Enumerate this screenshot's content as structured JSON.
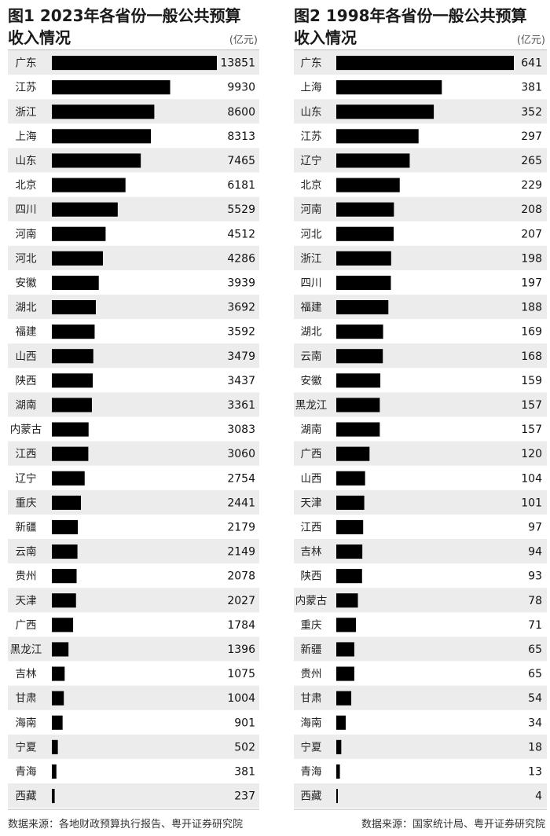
{
  "chart_data": [
    {
      "type": "bar",
      "orientation": "horizontal",
      "title": "图1 2023年各省份一般公共预算收入情况",
      "title_lines": [
        "图1 2023年各省份一般公共预算",
        "收入情况"
      ],
      "unit": "(亿元)",
      "categories": [
        "广东",
        "江苏",
        "浙江",
        "上海",
        "山东",
        "北京",
        "四川",
        "河南",
        "河北",
        "安徽",
        "湖北",
        "福建",
        "山西",
        "陕西",
        "湖南",
        "内蒙古",
        "江西",
        "辽宁",
        "重庆",
        "新疆",
        "云南",
        "贵州",
        "天津",
        "广西",
        "黑龙江",
        "吉林",
        "甘肃",
        "海南",
        "宁夏",
        "青海",
        "西藏"
      ],
      "values": [
        13851,
        9930,
        8600,
        8313,
        7465,
        6181,
        5529,
        4512,
        4286,
        3939,
        3692,
        3592,
        3479,
        3437,
        3361,
        3083,
        3060,
        2754,
        2441,
        2179,
        2149,
        2078,
        2027,
        1784,
        1396,
        1075,
        1004,
        901,
        502,
        381,
        237
      ],
      "xlim": [
        0,
        13851
      ],
      "bar_color": "#000000",
      "stripe_color": "#ececec",
      "source": "数据来源：各地财政预算执行报告、粤开证券研究院"
    },
    {
      "type": "bar",
      "orientation": "horizontal",
      "title": "图2 1998年各省份一般公共预算收入情况",
      "title_lines": [
        "图2 1998年各省份一般公共预算",
        "收入情况"
      ],
      "unit": "(亿元)",
      "categories": [
        "广东",
        "上海",
        "山东",
        "江苏",
        "辽宁",
        "北京",
        "河南",
        "河北",
        "浙江",
        "四川",
        "福建",
        "湖北",
        "云南",
        "安徽",
        "黑龙江",
        "湖南",
        "广西",
        "山西",
        "天津",
        "江西",
        "吉林",
        "陕西",
        "内蒙古",
        "重庆",
        "新疆",
        "贵州",
        "甘肃",
        "海南",
        "宁夏",
        "青海",
        "西藏"
      ],
      "values": [
        641,
        381,
        352,
        297,
        265,
        229,
        208,
        207,
        198,
        197,
        188,
        169,
        168,
        159,
        157,
        157,
        120,
        104,
        101,
        97,
        94,
        93,
        78,
        71,
        65,
        65,
        54,
        34,
        18,
        13,
        4
      ],
      "xlim": [
        0,
        641
      ],
      "bar_color": "#000000",
      "stripe_color": "#ececec",
      "source": "数据来源：国家统计局、粤开证券研究院"
    }
  ]
}
